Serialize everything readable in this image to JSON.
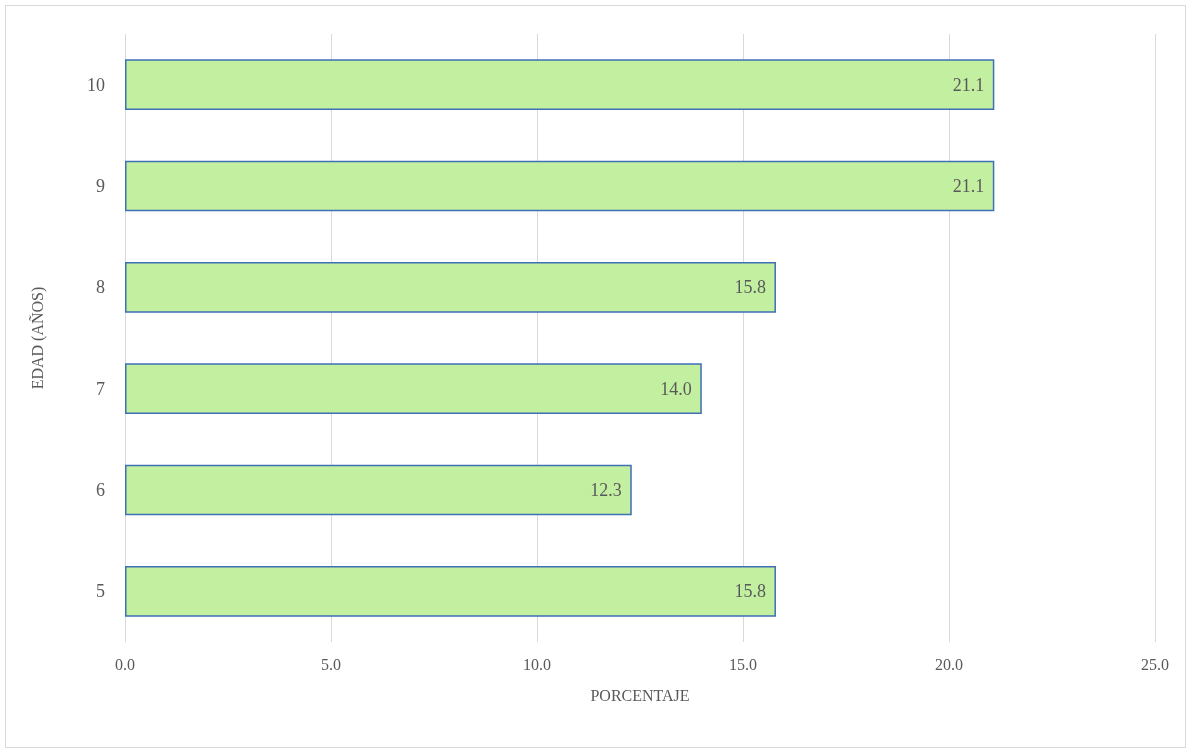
{
  "chart_data": {
    "type": "bar",
    "orientation": "horizontal",
    "xlabel": "PORCENTAJE",
    "ylabel": "EDAD (AÑOS)",
    "categories": [
      "10",
      "9",
      "8",
      "7",
      "6",
      "5"
    ],
    "values": [
      21.1,
      21.1,
      15.8,
      14.0,
      12.3,
      15.8
    ],
    "value_labels": [
      "21.1",
      "21.1",
      "15.8",
      "14.0",
      "12.3",
      "15.8"
    ],
    "color": "#c3f0a0",
    "xlim": [
      0,
      25
    ],
    "xticks": [
      {
        "value": 0,
        "label": "0.0"
      },
      {
        "value": 5,
        "label": "5.0"
      },
      {
        "value": 10,
        "label": "10.0"
      },
      {
        "value": 15,
        "label": "15.0"
      },
      {
        "value": 20,
        "label": "20.0"
      },
      {
        "value": 25,
        "label": "25.0"
      }
    ],
    "grid": "x"
  }
}
